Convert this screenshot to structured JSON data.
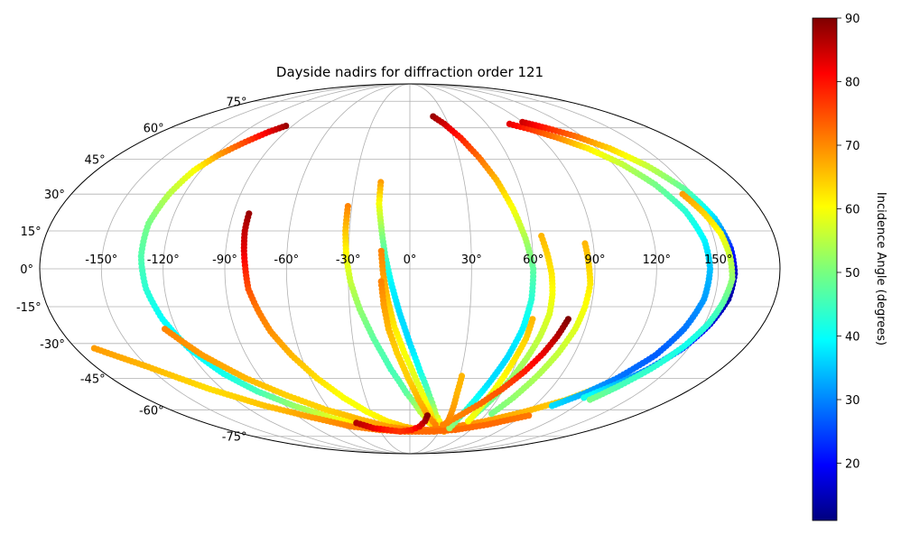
{
  "chart_data": {
    "type": "scatter",
    "projection": "mollweide",
    "title": "Dayside nadirs for diffraction order 121",
    "xlabel": "",
    "ylabel": "",
    "x_tick_labels": [
      "-150°",
      "-120°",
      "-90°",
      "-60°",
      "-30°",
      "0°",
      "30°",
      "60°",
      "90°",
      "120°",
      "150°"
    ],
    "y_tick_labels": [
      "-75°",
      "-60°",
      "-45°",
      "-30°",
      "-15°",
      "0°",
      "15°",
      "30°",
      "45°",
      "60°",
      "75°"
    ],
    "x_ticks": [
      -150,
      -120,
      -90,
      -60,
      -30,
      0,
      30,
      60,
      90,
      120,
      150
    ],
    "y_ticks": [
      -75,
      -60,
      -45,
      -30,
      -15,
      0,
      15,
      30,
      45,
      60,
      75
    ],
    "xlim": [
      -180,
      180
    ],
    "ylim": [
      -90,
      90
    ],
    "grid": true,
    "colorbar": {
      "label": "Incidence Angle (degrees)",
      "colormap": "jet",
      "range": [
        11,
        90
      ],
      "ticks": [
        20,
        30,
        40,
        50,
        60,
        70,
        80,
        90
      ],
      "tick_labels": [
        "20",
        "30",
        "40",
        "50",
        "60",
        "70",
        "80",
        "90"
      ]
    },
    "tracks": [
      {
        "points": [
          [
            -95,
            61,
            88
          ],
          [
            -102,
            58,
            82
          ],
          [
            -110,
            53,
            75
          ],
          [
            -118,
            47,
            68
          ],
          [
            -124,
            40,
            60
          ],
          [
            -128,
            30,
            55
          ],
          [
            -131,
            18,
            50
          ],
          [
            -131,
            5,
            47
          ],
          [
            -129,
            -8,
            44
          ],
          [
            -125,
            -20,
            41
          ],
          [
            -119,
            -32,
            40
          ],
          [
            -110,
            -43,
            42
          ],
          [
            -99,
            -51,
            46
          ],
          [
            -84,
            -58,
            52
          ],
          [
            -65,
            -64,
            58
          ],
          [
            -45,
            -68,
            63
          ],
          [
            -25,
            -70,
            67
          ],
          [
            -5,
            -71,
            70
          ],
          [
            15,
            -71,
            71
          ]
        ]
      },
      {
        "points": [
          [
            -82,
            22,
            88
          ],
          [
            -82,
            15,
            85
          ],
          [
            -81,
            7,
            82
          ],
          [
            -80,
            0,
            78
          ],
          [
            -79,
            -8,
            74
          ],
          [
            -76,
            -16,
            71
          ],
          [
            -72,
            -25,
            69
          ],
          [
            -65,
            -35,
            66
          ],
          [
            -56,
            -45,
            63
          ],
          [
            -45,
            -54,
            60
          ],
          [
            -33,
            -61,
            60
          ],
          [
            -20,
            -66,
            62
          ],
          [
            -6,
            -69,
            65
          ],
          [
            10,
            -71,
            68
          ],
          [
            25,
            -72,
            70
          ]
        ]
      },
      {
        "points": [
          [
            -32,
            25,
            70
          ],
          [
            -32,
            15,
            65
          ],
          [
            -31,
            5,
            60
          ],
          [
            -29,
            -5,
            56
          ],
          [
            -25,
            -16,
            52
          ],
          [
            -19,
            -28,
            48
          ],
          [
            -11,
            -41,
            46
          ],
          [
            -2,
            -52,
            48
          ],
          [
            8,
            -61,
            55
          ],
          [
            17,
            -67,
            62
          ],
          [
            27,
            -71,
            68
          ]
        ]
      },
      {
        "points": [
          [
            -16,
            35,
            68
          ],
          [
            -16,
            26,
            60
          ],
          [
            -14,
            15,
            52
          ],
          [
            -12,
            5,
            46
          ],
          [
            -9,
            -6,
            40
          ],
          [
            -5,
            -18,
            38
          ],
          [
            0,
            -30,
            38
          ],
          [
            6,
            -42,
            42
          ],
          [
            13,
            -53,
            48
          ],
          [
            20,
            -62,
            55
          ],
          [
            28,
            -68,
            62
          ],
          [
            35,
            -72,
            68
          ]
        ]
      },
      {
        "points": [
          [
            -14,
            7,
            70
          ],
          [
            -13,
            -2,
            68
          ],
          [
            -11,
            -12,
            65
          ],
          [
            -8,
            -23,
            62
          ],
          [
            -3,
            -34,
            60
          ],
          [
            4,
            -46,
            58
          ],
          [
            11,
            -56,
            60
          ],
          [
            18,
            -64,
            63
          ],
          [
            26,
            -70,
            66
          ]
        ]
      },
      {
        "points": [
          [
            -14,
            -5,
            70
          ],
          [
            -13,
            -14,
            68
          ],
          [
            -11,
            -24,
            66
          ],
          [
            -7,
            -34,
            64
          ],
          [
            -1,
            -45,
            64
          ],
          [
            6,
            -55,
            66
          ],
          [
            14,
            -63,
            68
          ],
          [
            23,
            -68,
            70
          ]
        ]
      },
      {
        "points": [
          [
            -126,
            -24,
            70
          ],
          [
            -114,
            -35,
            68
          ],
          [
            -99,
            -45,
            66
          ],
          [
            -82,
            -53,
            64
          ],
          [
            -63,
            -60,
            64
          ],
          [
            -42,
            -65,
            66
          ],
          [
            -21,
            -69,
            68
          ],
          [
            0,
            -71,
            70
          ],
          [
            21,
            -71,
            71
          ],
          [
            43,
            -69,
            70
          ],
          [
            65,
            -66,
            68
          ],
          [
            88,
            -61,
            66
          ],
          [
            108,
            -55,
            64
          ],
          [
            124,
            -47,
            63
          ]
        ]
      },
      {
        "points": [
          [
            -170,
            -32,
            68
          ],
          [
            -150,
            -40,
            66
          ],
          [
            -128,
            -50,
            63
          ],
          [
            -105,
            -58,
            65
          ],
          [
            -80,
            -64,
            68
          ],
          [
            -55,
            -69,
            70
          ],
          [
            -30,
            -71,
            71
          ],
          [
            -5,
            -72,
            72
          ],
          [
            20,
            -72,
            72
          ],
          [
            45,
            -71,
            72
          ],
          [
            70,
            -68,
            72
          ],
          [
            95,
            -63,
            71
          ]
        ]
      },
      {
        "points": [
          [
            -47,
            -67,
            86
          ],
          [
            -35,
            -70,
            82
          ],
          [
            -22,
            -71,
            78
          ],
          [
            -10,
            -72,
            76
          ],
          [
            2,
            -71,
            78
          ],
          [
            9,
            -69,
            82
          ],
          [
            13,
            -66,
            86
          ],
          [
            14,
            -63,
            89
          ]
        ]
      },
      {
        "points": [
          [
            20,
            66,
            88
          ],
          [
            27,
            62,
            84
          ],
          [
            35,
            55,
            78
          ],
          [
            42,
            46,
            72
          ],
          [
            48,
            36,
            66
          ],
          [
            53,
            24,
            60
          ],
          [
            57,
            12,
            54
          ],
          [
            60,
            0,
            48
          ],
          [
            60,
            -12,
            44
          ],
          [
            58,
            -24,
            40
          ],
          [
            54,
            -36,
            38
          ],
          [
            49,
            -47,
            38
          ],
          [
            44,
            -57,
            42
          ],
          [
            40,
            -65,
            48
          ],
          [
            38,
            -70,
            52
          ]
        ]
      },
      {
        "points": [
          [
            65,
            13,
            66
          ],
          [
            67,
            6,
            64
          ],
          [
            69,
            -2,
            62
          ],
          [
            70,
            -10,
            60
          ],
          [
            70,
            -18,
            58
          ],
          [
            68,
            -27,
            56
          ],
          [
            65,
            -36,
            54
          ],
          [
            61,
            -46,
            52
          ],
          [
            56,
            -55,
            50
          ],
          [
            51,
            -63,
            48
          ]
        ]
      },
      {
        "points": [
          [
            86,
            10,
            66
          ],
          [
            87,
            2,
            64
          ],
          [
            88,
            -6,
            62
          ],
          [
            87,
            -15,
            60
          ],
          [
            85,
            -24,
            58
          ],
          [
            81,
            -34,
            56
          ],
          [
            76,
            -44,
            54
          ],
          [
            70,
            -54,
            52
          ],
          [
            64,
            -62,
            50
          ]
        ]
      },
      {
        "points": [
          [
            62,
            -20,
            66
          ],
          [
            61,
            -28,
            64
          ],
          [
            58,
            -38,
            62
          ],
          [
            55,
            -48,
            60
          ],
          [
            52,
            -58,
            58
          ],
          [
            50,
            -66,
            60
          ]
        ]
      },
      {
        "points": [
          [
            80,
            -20,
            90
          ],
          [
            77,
            -27,
            86
          ],
          [
            73,
            -34,
            82
          ],
          [
            67,
            -42,
            78
          ],
          [
            59,
            -50,
            74
          ],
          [
            50,
            -57,
            72
          ],
          [
            40,
            -63,
            70
          ],
          [
            30,
            -68,
            70
          ]
        ]
      },
      {
        "points": [
          [
            31,
            -44,
            66
          ],
          [
            31,
            -52,
            66
          ],
          [
            32,
            -60,
            68
          ],
          [
            33,
            -67,
            70
          ]
        ]
      },
      {
        "points": [
          [
            78,
            62,
            82
          ],
          [
            90,
            59,
            76
          ],
          [
            102,
            55,
            70
          ],
          [
            114,
            50,
            62
          ],
          [
            125,
            43,
            56
          ],
          [
            134,
            34,
            50
          ],
          [
            141,
            23,
            44
          ],
          [
            145,
            11,
            40
          ],
          [
            146,
            0,
            36
          ],
          [
            145,
            -12,
            33
          ],
          [
            141,
            -24,
            30
          ],
          [
            135,
            -35,
            28
          ],
          [
            125,
            -45,
            30
          ],
          [
            115,
            -52,
            34
          ],
          [
            103,
            -58,
            38
          ]
        ]
      },
      {
        "points": [
          [
            90,
            63,
            84
          ],
          [
            102,
            60,
            78
          ],
          [
            115,
            56,
            72
          ],
          [
            128,
            50,
            64
          ],
          [
            139,
            42,
            56
          ],
          [
            148,
            32,
            48
          ],
          [
            154,
            20,
            38
          ],
          [
            157,
            8,
            24
          ],
          [
            158,
            -2,
            16
          ],
          [
            157,
            -12,
            14
          ],
          [
            153,
            -22,
            18
          ],
          [
            147,
            -32,
            24
          ],
          [
            138,
            -41,
            30
          ],
          [
            128,
            -48,
            36
          ],
          [
            118,
            -54,
            42
          ]
        ]
      },
      {
        "points": [
          [
            145,
            30,
            68
          ],
          [
            150,
            22,
            64
          ],
          [
            154,
            14,
            60
          ],
          [
            156,
            5,
            56
          ],
          [
            157,
            -4,
            52
          ],
          [
            155,
            -13,
            48
          ],
          [
            152,
            -22,
            44
          ],
          [
            147,
            -31,
            42
          ],
          [
            140,
            -40,
            44
          ],
          [
            132,
            -48,
            46
          ],
          [
            124,
            -55,
            50
          ]
        ]
      }
    ]
  }
}
